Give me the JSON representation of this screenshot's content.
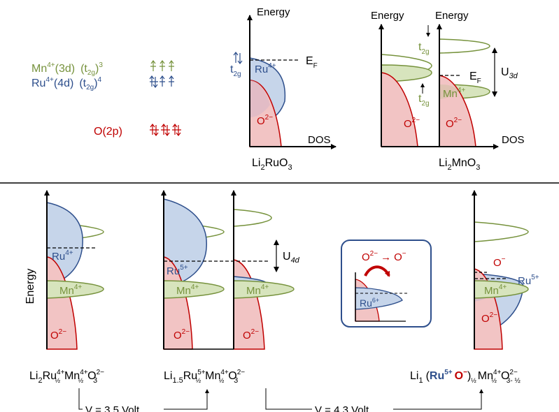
{
  "colors": {
    "mn": "#76923c",
    "ru": "#2e4f8c",
    "o": "#c00000",
    "mn_fill": "#d7e4bd",
    "ru_fill": "#c6d5ea",
    "o_fill": "#f2c4c4",
    "text": "#000000"
  },
  "legend": {
    "mn_ion": "Mn",
    "mn_charge": "4+",
    "mn_orbital": "(3d)",
    "mn_config": "(t",
    "mn_sub": "2g",
    "mn_close": ")",
    "mn_exp": "3",
    "ru_ion": "Ru",
    "ru_charge": "4+",
    "ru_orbital": "(4d)",
    "ru_config": "(t",
    "ru_sub": "2g",
    "ru_close": ")",
    "ru_exp": "4",
    "o_label": "O(2p)"
  },
  "top_panels": {
    "li2ruo3": {
      "energy_label": "Energy",
      "dos_label": "DOS",
      "ef_main": "E",
      "ef_sub": "F",
      "t2g_main": "t",
      "t2g_sub": "2g",
      "ru_main": "Ru",
      "ru_sup": "4+",
      "o_main": "O",
      "o_sup": "2−",
      "formula": [
        "Li",
        "2",
        "RuO",
        "3"
      ]
    },
    "li2mno3": {
      "energy_label_left": "Energy",
      "energy_label_right": "Energy",
      "dos_label": "DOS",
      "ef_main": "E",
      "ef_sub": "F",
      "t2g_top_main": "t",
      "t2g_top_sub": "2g",
      "t2g_bottom_main": "t",
      "t2g_bottom_sub": "2g",
      "u_main": "U",
      "u_sub": "3d",
      "mn_main": "Mn",
      "mn_sup": "4+",
      "o_left_main": "O",
      "o_left_sup": "2−",
      "o_right_main": "O",
      "o_right_sup": "2−",
      "formula": [
        "Li",
        "2",
        "MnO",
        "3"
      ]
    }
  },
  "bottom_panels": {
    "energy_label": "Energy",
    "panel1": {
      "ru_main": "Ru",
      "ru_sup": "4+",
      "mn_main": "Mn",
      "mn_sup": "4+",
      "o_main": "O",
      "o_sup": "2−"
    },
    "panel2": {
      "ru_main": "Ru",
      "ru_sup": "5+",
      "mn_left_main": "Mn",
      "mn_left_sup": "4+",
      "mn_right_main": "Mn",
      "mn_right_sup": "4+",
      "o_left_main": "O",
      "o_left_sup": "2−",
      "o_right_main": "O",
      "o_right_sup": "2−",
      "u_main": "U",
      "u_sub": "4d"
    },
    "inset": {
      "reaction_a": "O",
      "reaction_a_sup": "2−",
      "arrow": "→",
      "reaction_b": "O",
      "reaction_b_sup": "−",
      "ru_main": "Ru",
      "ru_sup": "6+"
    },
    "panel3": {
      "o_top_main": "O",
      "o_top_sup": "−",
      "ru_main": "Ru",
      "ru_sup": "5+",
      "mn_main": "Mn",
      "mn_sup": "4+",
      "o_main": "O",
      "o_sup": "2−"
    },
    "formulas": {
      "f1": {
        "li": "Li",
        "li_sub": "2",
        "ru": "Ru",
        "ru_sup": "4+",
        "ru_sub": "½",
        "mn": "Mn",
        "mn_sup": "4+",
        "mn_sub": "½",
        "o": "O",
        "o_sup": "2−",
        "o_sub": "3"
      },
      "f2": {
        "li": "Li",
        "li_sub": "1.5",
        "ru": "Ru",
        "ru_sup": "5+",
        "ru_sub": "½",
        "mn": "Mn",
        "mn_sup": "4+",
        "mn_sub": "½",
        "o": "O",
        "o_sup": "2−",
        "o_sub": "3"
      },
      "f3": {
        "li": "Li",
        "li_sub": "1",
        "open": "(",
        "ru": "Ru",
        "ru_sup": "5+",
        "o1": "O",
        "o1_sup": "−",
        "close": ")",
        "close_sub": "½",
        "mn": "Mn",
        "mn_sup": "4+",
        "mn_sub": "½",
        "o": "O",
        "o_sup": "2−",
        "o_sub": "3- ½"
      }
    },
    "voltage_1": "V = 3.5 Volt",
    "voltage_2": "V = 4.3 Volt"
  }
}
